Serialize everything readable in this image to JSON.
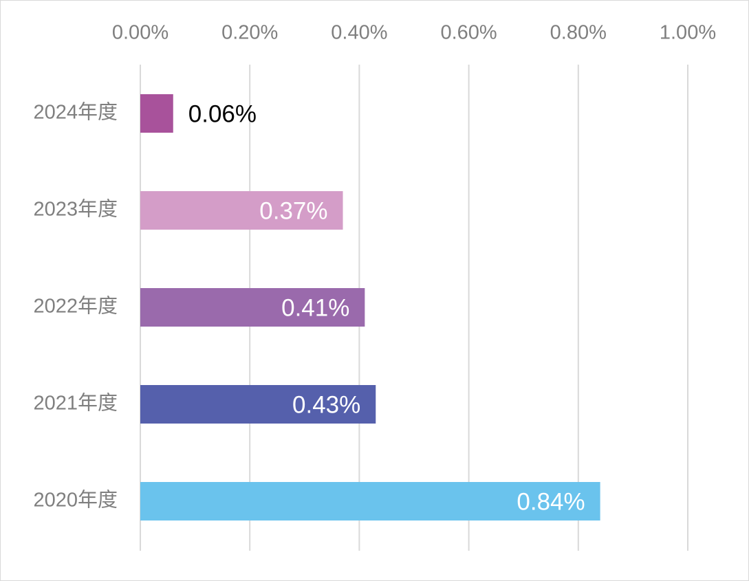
{
  "chart_data": {
    "type": "bar",
    "orientation": "horizontal",
    "title": "",
    "xlabel": "",
    "ylabel": "",
    "xlim": [
      0,
      1.0
    ],
    "x_ticks": [
      "0.00%",
      "0.20%",
      "0.40%",
      "0.60%",
      "0.80%",
      "1.00%"
    ],
    "x_axis_position": "top",
    "grid": true,
    "legend": "none",
    "categories": [
      "2024年度",
      "2023年度",
      "2022年度",
      "2021年度",
      "2020年度"
    ],
    "values": [
      0.06,
      0.37,
      0.41,
      0.43,
      0.84
    ],
    "data_labels": [
      "0.06%",
      "0.37%",
      "0.41%",
      "0.43%",
      "0.84%"
    ],
    "colors": [
      "#a8529b",
      "#d49dc8",
      "#9a6aac",
      "#5560ac",
      "#6ac3ed"
    ],
    "label_colors": [
      "#000000",
      "#ffffff",
      "#ffffff",
      "#ffffff",
      "#ffffff"
    ],
    "label_positions": [
      "outside",
      "inside-end",
      "inside-end",
      "inside-end",
      "inside-end"
    ]
  }
}
